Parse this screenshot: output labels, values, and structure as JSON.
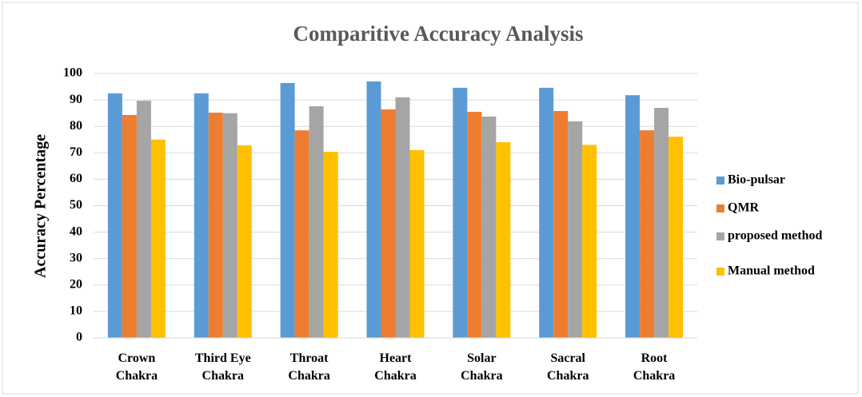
{
  "chart_data": {
    "type": "bar",
    "title": "Comparitive Accuracy Analysis",
    "y_label": "Accuracy Percentage",
    "categories": [
      "Crown Chakra",
      "Third Eye Chakra",
      "Throat Chakra",
      "Heart Chakra",
      "Solar Chakra",
      "Sacral Chakra",
      "Root Chakra"
    ],
    "series": [
      {
        "name": "Bio-pulsar",
        "color": "#5b9bd5",
        "values": [
          92.5,
          92.5,
          96.4,
          97,
          94.6,
          94.6,
          91.8
        ]
      },
      {
        "name": "QMR",
        "color": "#ed7d31",
        "values": [
          84.3,
          85.2,
          78.5,
          86.4,
          85.5,
          85.8,
          78.5
        ]
      },
      {
        "name": "proposed method",
        "color": "#a5a5a5",
        "values": [
          89.7,
          85,
          87.6,
          91,
          83.7,
          81.9,
          87
        ]
      },
      {
        "name": "Manual method",
        "color": "#ffc000",
        "values": [
          75,
          72.8,
          70.4,
          71,
          74,
          73,
          76.1
        ]
      }
    ],
    "ylim": [
      0,
      100
    ],
    "yticks": [
      0,
      10,
      20,
      30,
      40,
      50,
      60,
      70,
      80,
      90,
      100
    ],
    "grid": true,
    "legend": "right"
  }
}
